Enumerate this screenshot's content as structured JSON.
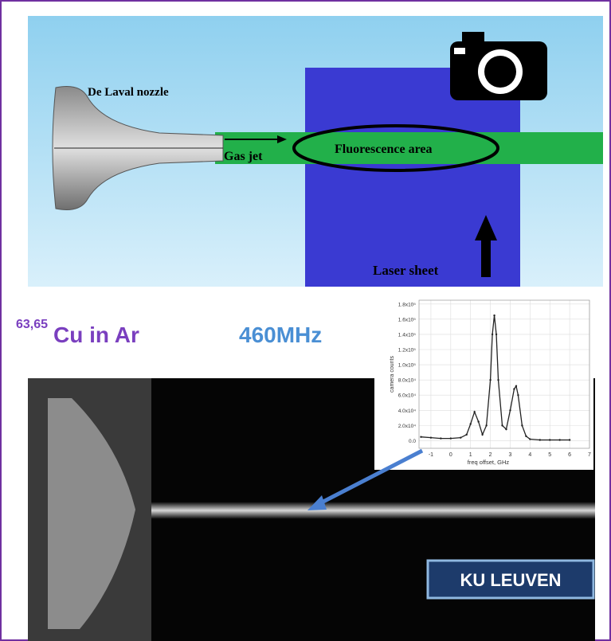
{
  "diagram": {
    "nozzle_label": "De Laval nozzle",
    "jet_label": "Gas jet",
    "area_label": "Fluorescence area",
    "laser_label": "Laser sheet"
  },
  "heading": {
    "isotopes": "63,65",
    "sample": "Cu in Ar",
    "resolution": "460MHz"
  },
  "logo": "KU LEUVEN",
  "chart_data": {
    "type": "line",
    "x_label": "freq offset, GHz",
    "y_label": "camera counts",
    "x": [
      -1.5,
      -1,
      -0.5,
      0,
      0.5,
      0.8,
      1.0,
      1.2,
      1.4,
      1.6,
      1.8,
      2.0,
      2.1,
      2.2,
      2.3,
      2.4,
      2.6,
      2.8,
      3.0,
      3.2,
      3.3,
      3.4,
      3.6,
      3.8,
      4.0,
      4.5,
      5,
      5.5,
      6
    ],
    "series": [
      {
        "color": "#222222",
        "values": [
          5000,
          4000,
          3000,
          3000,
          4000,
          8000,
          22000,
          38000,
          25000,
          8000,
          20000,
          80000,
          140000,
          165000,
          140000,
          80000,
          20000,
          15000,
          40000,
          68000,
          72000,
          60000,
          20000,
          6000,
          2000,
          1000,
          1000,
          1000,
          1000
        ]
      }
    ],
    "xlim": [
      -1.6,
      7
    ],
    "xticks": [
      -1,
      0,
      1,
      2,
      3,
      4,
      5,
      6,
      7
    ],
    "ylim": [
      -10000,
      185000
    ],
    "yticks": [
      {
        "value": 0,
        "label": "0.0"
      },
      {
        "value": 20000,
        "label": "2.0x10⁴"
      },
      {
        "value": 40000,
        "label": "4.0x10⁴"
      },
      {
        "value": 60000,
        "label": "6.0x10⁴"
      },
      {
        "value": 80000,
        "label": "8.0x10⁴"
      },
      {
        "value": 100000,
        "label": "1.0x10⁵"
      },
      {
        "value": 120000,
        "label": "1.2x10⁵"
      },
      {
        "value": 140000,
        "label": "1.4x10⁵"
      },
      {
        "value": 160000,
        "label": "1.6x10⁵"
      },
      {
        "value": 180000,
        "label": "1.8x10⁵"
      }
    ],
    "grid": true
  }
}
